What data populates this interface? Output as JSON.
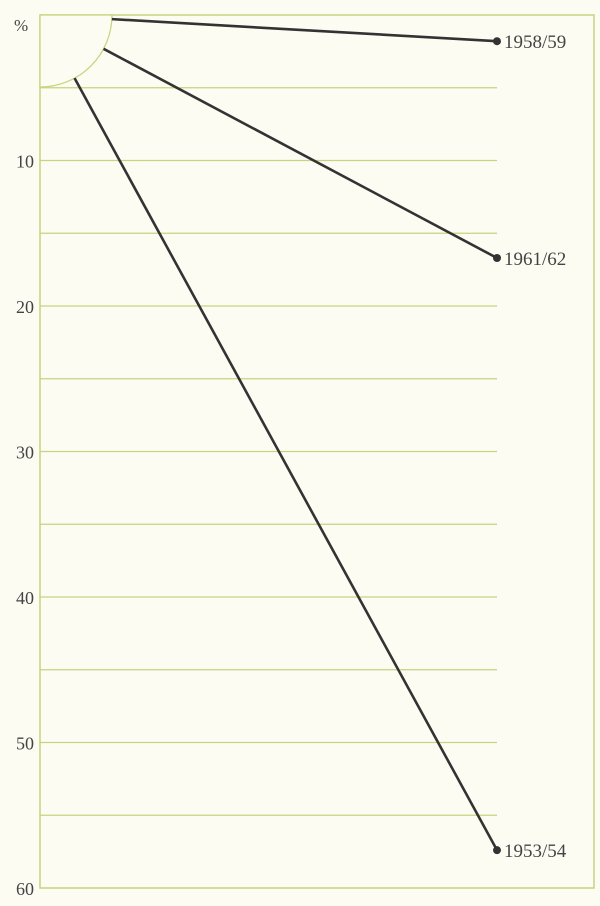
{
  "chart_data": {
    "type": "line",
    "ylabel": "%",
    "ylim": [
      0,
      60
    ],
    "yaxis_inverted": true,
    "yticks": [
      10,
      20,
      30,
      40,
      50,
      60
    ],
    "ytick_labels": [
      "10",
      "20",
      "30",
      "40",
      "50",
      "60"
    ],
    "grid": true,
    "grid_interval": 5,
    "series": [
      {
        "name": "1958/59",
        "end_value": 1.8
      },
      {
        "name": "1961/62",
        "end_value": 16.7
      },
      {
        "name": "1953/54",
        "end_value": 57.4
      }
    ],
    "colors": {
      "background": "#fdfcf3",
      "grid": "#c9d27e",
      "line": "#333333",
      "text": "#444444"
    }
  }
}
